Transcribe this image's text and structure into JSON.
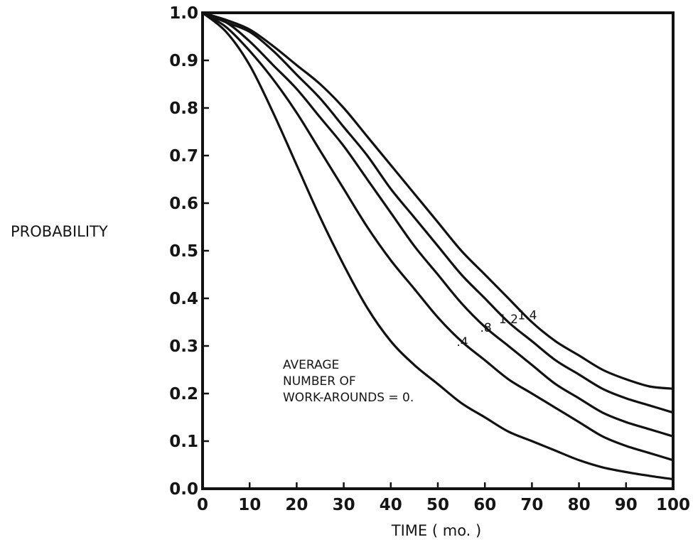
{
  "chart_data": {
    "type": "line",
    "xlabel": "TIME ( mo. )",
    "ylabel": "PROBABILITY",
    "xlim": [
      0,
      100
    ],
    "ylim": [
      0.0,
      1.0
    ],
    "xticks": [
      "0",
      "10",
      "20",
      "30",
      "40",
      "50",
      "60",
      "70",
      "80",
      "90",
      "100"
    ],
    "yticks": [
      "0.0",
      "0.1",
      "0.2",
      "0.3",
      "0.4",
      "0.5",
      "0.6",
      "0.7",
      "0.8",
      "0.9",
      "1.0"
    ],
    "grid": false,
    "annotation": [
      "AVERAGE",
      "NUMBER OF",
      "WORK-AROUNDS = 0."
    ],
    "x": [
      0,
      5,
      10,
      15,
      20,
      25,
      30,
      35,
      40,
      45,
      50,
      55,
      60,
      65,
      70,
      75,
      80,
      85,
      90,
      95,
      100
    ],
    "series": [
      {
        "name": "0.",
        "label": "",
        "values": [
          1.0,
          0.96,
          0.89,
          0.79,
          0.68,
          0.57,
          0.47,
          0.38,
          0.31,
          0.26,
          0.22,
          0.18,
          0.15,
          0.12,
          0.1,
          0.08,
          0.06,
          0.045,
          0.035,
          0.027,
          0.02
        ]
      },
      {
        "name": ".4",
        "label": ".4",
        "values": [
          1.0,
          0.97,
          0.92,
          0.86,
          0.79,
          0.71,
          0.63,
          0.55,
          0.48,
          0.42,
          0.36,
          0.31,
          0.27,
          0.23,
          0.2,
          0.17,
          0.14,
          0.11,
          0.09,
          0.075,
          0.06
        ]
      },
      {
        "name": ".8",
        "label": ".8",
        "values": [
          1.0,
          0.98,
          0.94,
          0.89,
          0.84,
          0.78,
          0.72,
          0.65,
          0.58,
          0.51,
          0.45,
          0.39,
          0.34,
          0.3,
          0.26,
          0.22,
          0.19,
          0.16,
          0.14,
          0.125,
          0.11
        ]
      },
      {
        "name": "1.2",
        "label": "1.2",
        "values": [
          1.0,
          0.98,
          0.96,
          0.92,
          0.87,
          0.82,
          0.76,
          0.7,
          0.63,
          0.57,
          0.51,
          0.45,
          0.4,
          0.35,
          0.31,
          0.27,
          0.24,
          0.21,
          0.19,
          0.175,
          0.16
        ]
      },
      {
        "name": "1.4",
        "label": "1.4",
        "values": [
          1.0,
          0.985,
          0.965,
          0.93,
          0.89,
          0.85,
          0.8,
          0.74,
          0.68,
          0.62,
          0.56,
          0.5,
          0.45,
          0.4,
          0.35,
          0.31,
          0.28,
          0.25,
          0.23,
          0.215,
          0.21
        ]
      }
    ]
  }
}
